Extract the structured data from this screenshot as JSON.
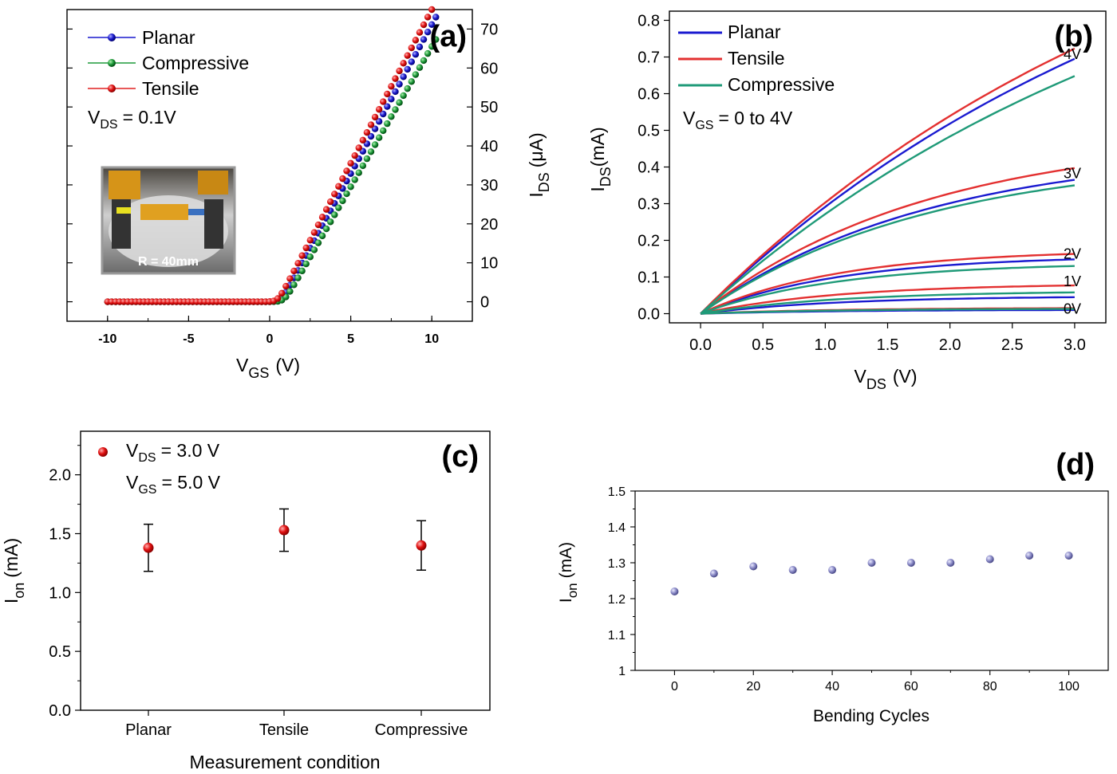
{
  "colors": {
    "planar": "#1a1acd",
    "compressive": "#1e9a3a",
    "tensile": "#e02222",
    "b_planar": "#1a1ad0",
    "b_tensile": "#e33030",
    "b_compressive": "#1f9a78",
    "marker_c": "#e01010",
    "marker_d": "#8c8cc8"
  },
  "chart_data": [
    {
      "panel": "(a)",
      "type": "scatter",
      "xlabel_main": "V",
      "xlabel_sub": "GS",
      "xlabel_unit": "(V)",
      "ylabel_main": "I",
      "ylabel_sub": "DS",
      "ylabel_unit": "(μA)",
      "x_ticks": [
        "-10",
        "-5",
        "0",
        "5",
        "10"
      ],
      "y_ticks": [
        "0",
        "10",
        "20",
        "30",
        "40",
        "50",
        "60",
        "70"
      ],
      "xlim": [
        -12.5,
        12.5
      ],
      "ylim": [
        -5,
        75
      ],
      "annotation_main": "V",
      "annotation_sub": "DS",
      "annotation_rest": "= 0.1V",
      "inset_caption": "R = 40mm",
      "series": [
        {
          "name": "Planar",
          "threshold": 0.7,
          "slope": 7.65,
          "xmax": 10.25
        },
        {
          "name": "Compressive",
          "threshold": 0.9,
          "slope": 7.2,
          "xmax": 10.25
        },
        {
          "name": "Tensile",
          "threshold": 0.5,
          "slope": 7.9,
          "xmax": 10.0
        }
      ],
      "x_step": 0.25,
      "x_start": -10
    },
    {
      "panel": "(b)",
      "type": "line",
      "xlabel_main": "V",
      "xlabel_sub": "DS",
      "xlabel_unit": "(V)",
      "ylabel_main": "I",
      "ylabel_sub": "DS",
      "ylabel_unit": "(mA)",
      "x_ticks": [
        "0.0",
        "0.5",
        "1.0",
        "1.5",
        "2.0",
        "2.5",
        "3.0"
      ],
      "y_ticks": [
        "0.0",
        "0.1",
        "0.2",
        "0.3",
        "0.4",
        "0.5",
        "0.6",
        "0.7",
        "0.8"
      ],
      "xlim": [
        -0.25,
        3.25
      ],
      "ylim": [
        -0.025,
        0.825
      ],
      "annotation_main": "V",
      "annotation_sub": "GS",
      "annotation_rest": "= 0 to 4V",
      "curve_labels": [
        {
          "text": "4V",
          "y": 0.71
        },
        {
          "text": "3V",
          "y": 0.385
        },
        {
          "text": "2V",
          "y": 0.165
        },
        {
          "text": "1V",
          "y": 0.09
        },
        {
          "text": "0V",
          "y": 0.015
        }
      ],
      "series": [
        {
          "name": "Planar",
          "sat": [
            0.01,
            0.045,
            0.148,
            0.365,
            0.695
          ]
        },
        {
          "name": "Tensile",
          "sat": [
            0.015,
            0.077,
            0.163,
            0.397,
            0.723
          ]
        },
        {
          "name": "Compressive",
          "sat": [
            0.013,
            0.058,
            0.13,
            0.35,
            0.648
          ]
        }
      ]
    },
    {
      "panel": "(c)",
      "type": "scatter",
      "categories": [
        "Planar",
        "Tensile",
        "Compressive"
      ],
      "values": [
        1.38,
        1.53,
        1.4
      ],
      "error_low": [
        1.18,
        1.35,
        1.19
      ],
      "error_high": [
        1.58,
        1.71,
        1.61
      ],
      "xlabel": "Measurement condition",
      "ylabel_main": "I",
      "ylabel_sub": "on",
      "ylabel_unit": "(mA)",
      "y_ticks": [
        "0.0",
        "0.5",
        "1.0",
        "1.5",
        "2.0"
      ],
      "ylim": [
        0,
        2.37
      ],
      "legend_main": "V",
      "legend_sub": "DS",
      "legend_rest": "= 3.0 V",
      "legend2_main": "V",
      "legend2_sub": "GS",
      "legend2_rest": "= 5.0 V"
    },
    {
      "panel": "(d)",
      "type": "scatter",
      "x": [
        0,
        10,
        20,
        30,
        40,
        50,
        60,
        70,
        80,
        90,
        100
      ],
      "values": [
        1.22,
        1.27,
        1.29,
        1.28,
        1.28,
        1.3,
        1.3,
        1.3,
        1.31,
        1.32,
        1.32
      ],
      "xlabel": "Bending Cycles",
      "ylabel_main": "I",
      "ylabel_sub": "on",
      "ylabel_unit": "(mA)",
      "x_ticks": [
        "0",
        "20",
        "40",
        "60",
        "80",
        "100"
      ],
      "y_ticks": [
        "1",
        "1.1",
        "1.2",
        "1.3",
        "1.4",
        "1.5"
      ],
      "xlim": [
        -10,
        110
      ],
      "ylim": [
        1.0,
        1.5
      ]
    }
  ]
}
